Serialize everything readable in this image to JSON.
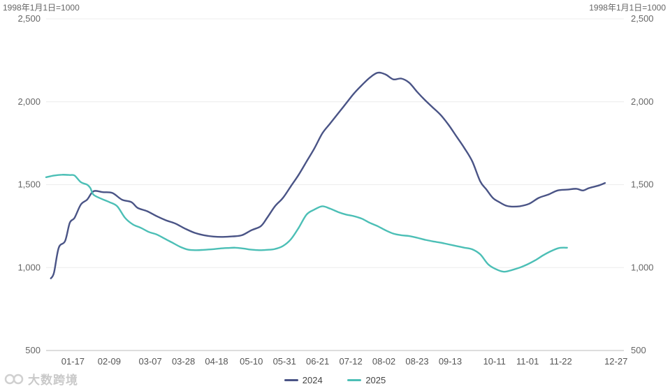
{
  "chart_data": {
    "type": "line",
    "unit_left": "1998年1月1日=1000",
    "unit_right": "1998年1月1日=1000",
    "ylim": [
      500,
      2500
    ],
    "yticks": [
      "500",
      "1,000",
      "1,500",
      "2,000",
      "2,500"
    ],
    "ytick_values": [
      500,
      1000,
      1500,
      2000,
      2500
    ],
    "xticks": [
      "01-17",
      "02-09",
      "03-07",
      "03-28",
      "04-18",
      "05-10",
      "05-31",
      "06-21",
      "07-12",
      "08-02",
      "08-23",
      "09-13",
      "10-11",
      "11-01",
      "11-22",
      "12-27"
    ],
    "xtick_days": [
      17,
      40,
      66,
      87,
      108,
      130,
      151,
      172,
      193,
      214,
      235,
      256,
      284,
      305,
      326,
      361
    ],
    "grid": true,
    "legend_position": "bottom",
    "series": [
      {
        "name": "2024",
        "color": "#4a5486",
        "x": [
          3,
          5,
          8,
          12,
          15,
          18,
          22,
          26,
          30,
          36,
          42,
          48,
          54,
          58,
          64,
          70,
          76,
          82,
          88,
          94,
          100,
          106,
          112,
          118,
          124,
          130,
          136,
          140,
          145,
          150,
          155,
          160,
          165,
          170,
          175,
          180,
          185,
          190,
          195,
          200,
          205,
          210,
          215,
          220,
          225,
          230,
          235,
          240,
          245,
          250,
          255,
          260,
          265,
          270,
          275,
          279,
          283,
          287,
          291,
          295,
          300,
          306,
          312,
          318,
          324,
          330,
          336,
          340,
          344,
          350,
          354
        ],
        "values": [
          935,
          970,
          1120,
          1160,
          1270,
          1300,
          1380,
          1410,
          1460,
          1455,
          1450,
          1410,
          1395,
          1360,
          1340,
          1310,
          1285,
          1265,
          1235,
          1210,
          1195,
          1187,
          1185,
          1188,
          1195,
          1225,
          1250,
          1300,
          1370,
          1420,
          1490,
          1560,
          1640,
          1720,
          1810,
          1870,
          1930,
          1990,
          2050,
          2100,
          2145,
          2175,
          2165,
          2135,
          2140,
          2115,
          2060,
          2010,
          1965,
          1920,
          1860,
          1790,
          1720,
          1640,
          1520,
          1470,
          1420,
          1395,
          1375,
          1368,
          1370,
          1385,
          1420,
          1440,
          1465,
          1470,
          1475,
          1465,
          1480,
          1495,
          1510
        ]
      },
      {
        "name": "2025",
        "color": "#4cbfb6",
        "x": [
          0,
          5,
          10,
          15,
          18,
          22,
          26,
          28,
          30,
          35,
          40,
          45,
          50,
          55,
          60,
          65,
          70,
          75,
          80,
          85,
          90,
          95,
          100,
          105,
          110,
          115,
          120,
          125,
          130,
          135,
          140,
          145,
          150,
          155,
          160,
          165,
          170,
          175,
          180,
          185,
          190,
          195,
          200,
          205,
          210,
          215,
          220,
          225,
          230,
          235,
          240,
          245,
          250,
          255,
          260,
          265,
          270,
          275,
          280,
          285,
          290,
          295,
          300,
          305,
          310,
          315,
          320,
          325,
          330
        ],
        "values": [
          1545,
          1555,
          1560,
          1558,
          1555,
          1515,
          1500,
          1480,
          1440,
          1415,
          1395,
          1370,
          1300,
          1260,
          1240,
          1215,
          1200,
          1175,
          1150,
          1125,
          1108,
          1105,
          1107,
          1110,
          1115,
          1118,
          1120,
          1115,
          1108,
          1105,
          1107,
          1112,
          1130,
          1170,
          1240,
          1320,
          1350,
          1370,
          1355,
          1335,
          1320,
          1310,
          1295,
          1270,
          1250,
          1225,
          1205,
          1195,
          1190,
          1180,
          1168,
          1158,
          1150,
          1140,
          1130,
          1120,
          1110,
          1080,
          1020,
          990,
          975,
          985,
          1000,
          1020,
          1045,
          1075,
          1100,
          1118,
          1120
        ]
      }
    ]
  }
}
